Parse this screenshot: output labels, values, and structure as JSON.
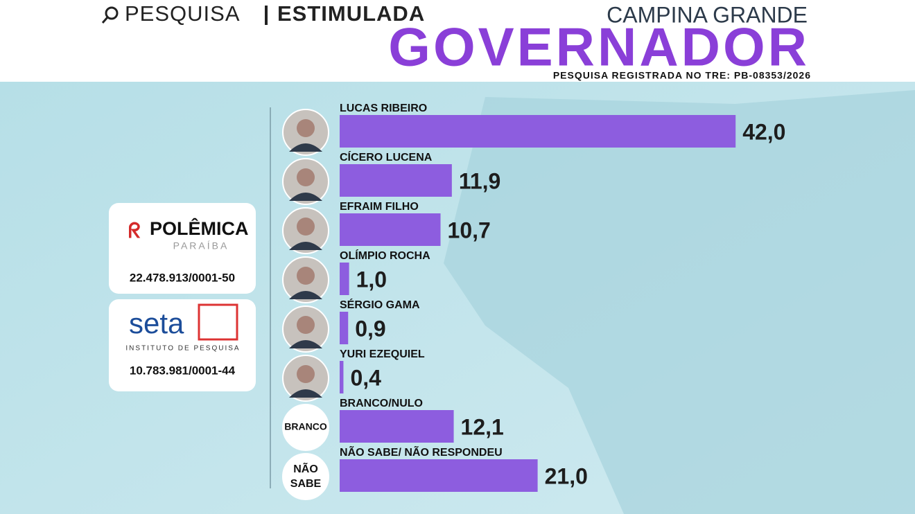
{
  "header": {
    "search_label": "PESQUISA",
    "search_type": "ESTIMULADA",
    "city": "CAMPINA GRANDE",
    "office": "GOVERNADOR",
    "registration": "PESQUISA REGISTRADA NO TRE: PB-08353/2026"
  },
  "sponsors": [
    {
      "name": "POLÊMICA",
      "subtitle": "PARAÍBA",
      "cnpj": "22.478.913/0001-50"
    },
    {
      "name": "seta",
      "subtitle": "INSTITUTO DE PESQUISA",
      "cnpj": "10.783.981/0001-44"
    }
  ],
  "chart_data": {
    "type": "bar",
    "orientation": "horizontal",
    "categories": [
      "LUCAS RIBEIRO",
      "CÍCERO LUCENA",
      "EFRAIM FILHO",
      "OLÍMPIO ROCHA",
      "SÉRGIO GAMA",
      "YURI EZEQUIEL",
      "BRANCO/NULO",
      "NÃO SABE/ NÃO RESPONDEU"
    ],
    "values": [
      42.0,
      11.9,
      10.7,
      1.0,
      0.9,
      0.4,
      12.1,
      21.0
    ],
    "value_labels": [
      "42,0",
      "11,9",
      "10,7",
      "1,0",
      "0,9",
      "0,4",
      "12,1",
      "21,0"
    ],
    "avatar_labels": [
      null,
      null,
      null,
      null,
      null,
      null,
      "BRANCO",
      "NÃO SABE"
    ],
    "color": "#8d5ddf"
  }
}
